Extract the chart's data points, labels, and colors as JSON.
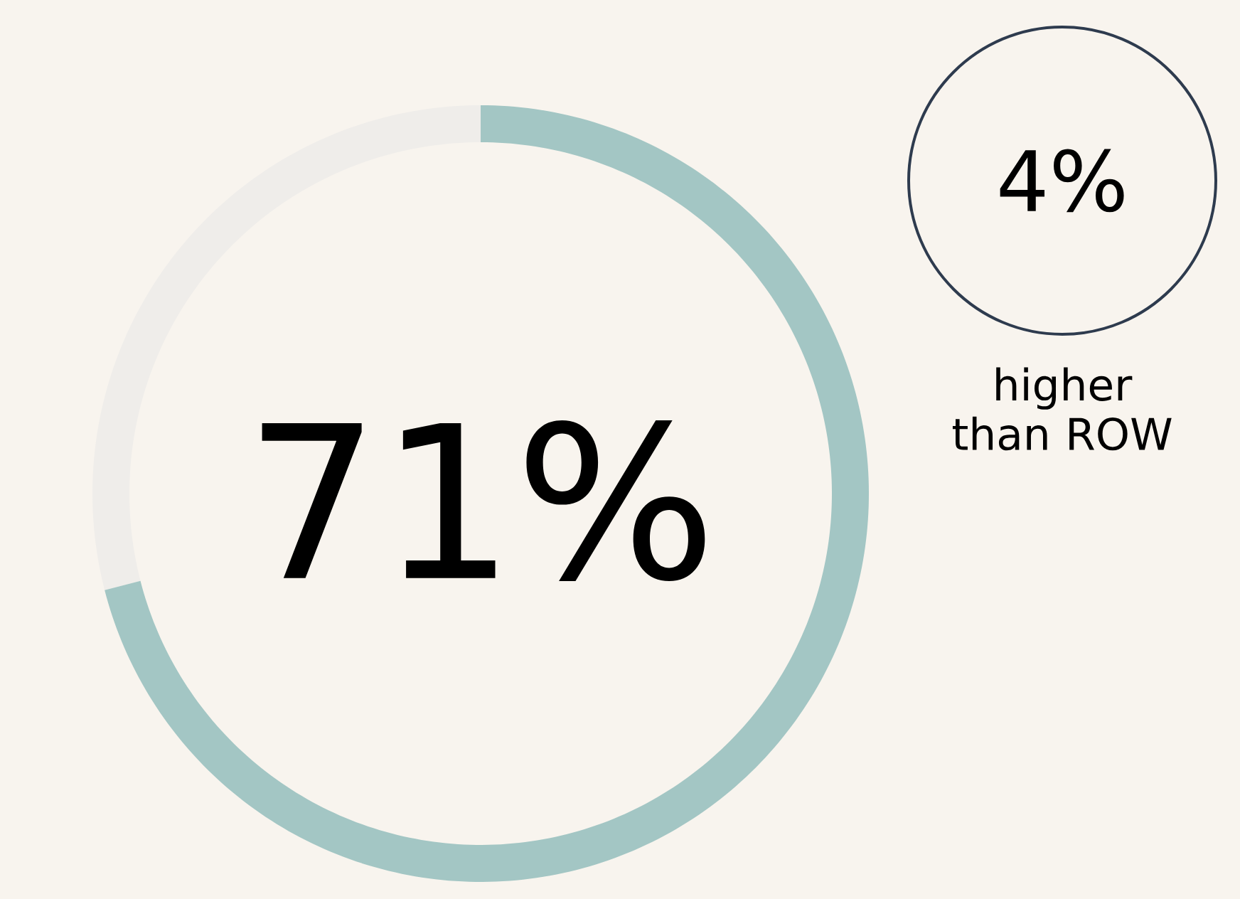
{
  "chart_data": {
    "type": "donut",
    "categories": [
      null,
      null
    ],
    "values": [
      71,
      29
    ],
    "colors": [
      "#a3c6c4",
      "#efedea"
    ],
    "value_labels": [
      "71%",
      null
    ],
    "annotations": [
      "4%",
      "higher than ROW"
    ]
  }
}
